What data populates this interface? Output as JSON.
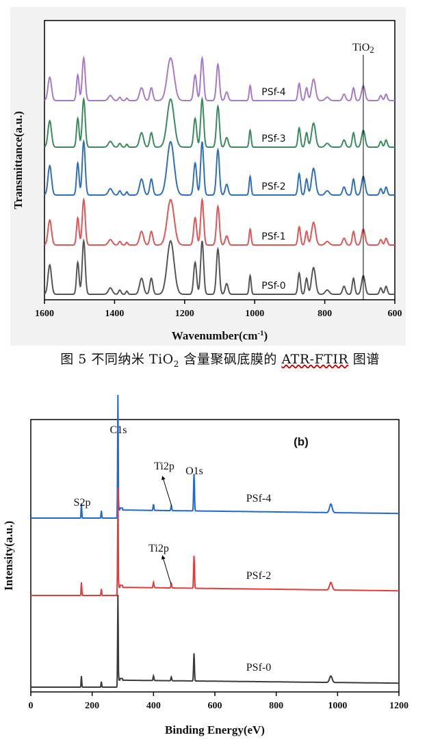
{
  "chart_data": [
    {
      "type": "line",
      "title": "",
      "xlabel": "Wavenumber(cm-1)",
      "xlabel_main": "Wavenumber(cm",
      "xlabel_sup": "-1",
      "xlabel_close": ")",
      "ylabel": "Transmittance(a.u.)",
      "xlim": [
        1600,
        600
      ],
      "x_ticks": [
        1600,
        1400,
        1200,
        1000,
        800,
        600
      ],
      "x_tick_labels": [
        "1600",
        "1400",
        "1200",
        "1000",
        "800",
        "600"
      ],
      "annotation": {
        "text_main": "TiO",
        "text_sub": "2",
        "x": 690
      },
      "peaks": [
        {
          "x": 1585,
          "depth": 0.55,
          "width": 7
        },
        {
          "x": 1505,
          "depth": 0.6,
          "width": 5
        },
        {
          "x": 1488,
          "depth": 1.0,
          "width": 6
        },
        {
          "x": 1412,
          "depth": 0.12,
          "width": 8
        },
        {
          "x": 1385,
          "depth": 0.08,
          "width": 5
        },
        {
          "x": 1365,
          "depth": 0.06,
          "width": 4
        },
        {
          "x": 1323,
          "depth": 0.3,
          "width": 8
        },
        {
          "x": 1295,
          "depth": 0.3,
          "width": 6
        },
        {
          "x": 1240,
          "depth": 1.0,
          "width": 14
        },
        {
          "x": 1170,
          "depth": 0.6,
          "width": 6
        },
        {
          "x": 1150,
          "depth": 1.0,
          "width": 6
        },
        {
          "x": 1105,
          "depth": 0.85,
          "width": 6
        },
        {
          "x": 1080,
          "depth": 0.2,
          "width": 6
        },
        {
          "x": 1013,
          "depth": 0.35,
          "width": 4
        },
        {
          "x": 873,
          "depth": 0.4,
          "width": 5
        },
        {
          "x": 852,
          "depth": 0.3,
          "width": 5
        },
        {
          "x": 832,
          "depth": 0.5,
          "width": 8
        },
        {
          "x": 793,
          "depth": 0.08,
          "width": 8
        },
        {
          "x": 745,
          "depth": 0.15,
          "width": 6
        },
        {
          "x": 718,
          "depth": 0.3,
          "width": 5
        },
        {
          "x": 690,
          "depth": 0.35,
          "width": 7
        },
        {
          "x": 640,
          "depth": 0.12,
          "width": 5
        },
        {
          "x": 625,
          "depth": 0.15,
          "width": 5
        }
      ],
      "series": [
        {
          "name": "PSf-4",
          "color": "#a57ac6",
          "offset": 4,
          "scale": 0.8
        },
        {
          "name": "PSf-3",
          "color": "#3a8a5e",
          "offset": 3,
          "scale": 0.9
        },
        {
          "name": "PSf-2",
          "color": "#2f6fb5",
          "offset": 2,
          "scale": 1.0
        },
        {
          "name": "PSf-1",
          "color": "#e05656",
          "offset": 1,
          "scale": 0.85
        },
        {
          "name": "PSf-0",
          "color": "#555555",
          "offset": 0,
          "scale": 1.0
        }
      ]
    },
    {
      "type": "line",
      "title": "(b)",
      "xlabel": "Binding Energy(eV)",
      "ylabel": "Intensity(a.u.)",
      "xlim": [
        0,
        1200
      ],
      "x_ticks": [
        0,
        200,
        400,
        600,
        800,
        1000,
        1200
      ],
      "x_tick_labels": [
        "0",
        "200",
        "400",
        "600",
        "800",
        "1000",
        "1200"
      ],
      "peak_labels": {
        "c1s": "C1s",
        "s2p": "S2p",
        "o1s": "O1s",
        "ti2p": "Ti2p"
      },
      "peaks": [
        {
          "x": 165,
          "height": 0.12,
          "width": 1.5
        },
        {
          "x": 230,
          "height": 0.06,
          "width": 1.5
        },
        {
          "x": 284,
          "height": 1.0,
          "width": 1.5
        },
        {
          "x": 400,
          "height": 0.05,
          "width": 2
        },
        {
          "x": 458,
          "height": 0.04,
          "width": 2
        },
        {
          "x": 532,
          "height": 0.3,
          "width": 2
        },
        {
          "x": 978,
          "height": 0.07,
          "width": 6
        }
      ],
      "series": [
        {
          "name": "PSf-4",
          "color": "#1f67d6",
          "offset": 2,
          "scale": 0.7,
          "ti2p": true
        },
        {
          "name": "PSf-2",
          "color": "#e63b3b",
          "offset": 1,
          "scale": 0.8,
          "ti2p": true
        },
        {
          "name": "PSf-0",
          "color": "#3a3a3a",
          "offset": 0,
          "scale": 0.9,
          "ti2p": false
        }
      ]
    }
  ],
  "caption": {
    "prefix": "图 5  不同纳米 TiO",
    "sub": "2",
    "middle": " 含量聚砜底膜的 ",
    "underlined": "ATR-FTIR",
    "suffix": " 图谱"
  }
}
